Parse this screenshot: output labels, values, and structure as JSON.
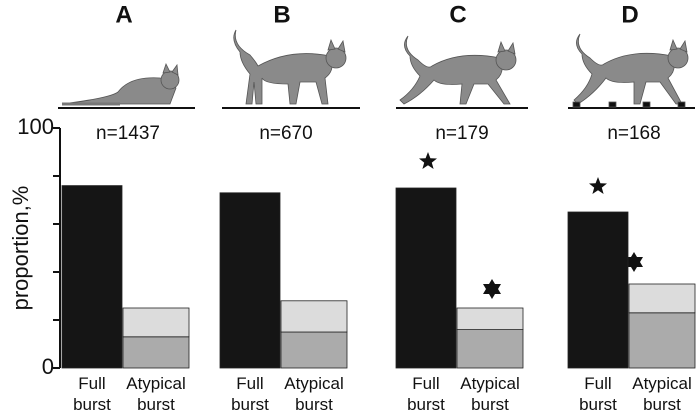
{
  "chart_data": {
    "type": "bar",
    "ylabel": "proportion,%",
    "ylim": [
      0,
      100
    ],
    "yticks": [
      0,
      100
    ],
    "minor_yticks": [
      20,
      40,
      60,
      80
    ],
    "categories": [
      "Full burst",
      "Atypical burst"
    ],
    "panels": [
      {
        "title": "A",
        "subtitle": "n=1437",
        "series": [
          {
            "colors": [
              "#151515",
              "#ababab"
            ],
            "values": [
              76,
              13
            ]
          },
          {
            "colors": [
              null,
              "#dcdcdc"
            ],
            "values": [
              null,
              12
            ]
          }
        ]
      },
      {
        "title": "B",
        "subtitle": "n=670",
        "series": [
          {
            "colors": [
              "#151515",
              "#ababab"
            ],
            "values": [
              73,
              15
            ]
          },
          {
            "colors": [
              null,
              "#dcdcdc"
            ],
            "values": [
              null,
              13
            ]
          }
        ]
      },
      {
        "title": "C",
        "subtitle": "n=179",
        "series": [
          {
            "colors": [
              "#151515",
              "#ababab"
            ],
            "values": [
              75,
              16
            ]
          },
          {
            "colors": [
              null,
              "#dcdcdc"
            ],
            "values": [
              null,
              9
            ]
          }
        ]
      },
      {
        "title": "D",
        "subtitle": "n=168",
        "series": [
          {
            "colors": [
              "#151515",
              "#ababab"
            ],
            "values": [
              65,
              23
            ]
          },
          {
            "colors": [
              null,
              "#dcdcdc"
            ],
            "values": [
              null,
              12
            ]
          }
        ]
      }
    ]
  }
}
